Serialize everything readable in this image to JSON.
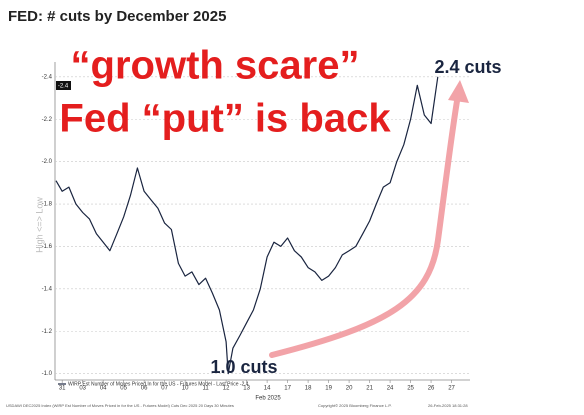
{
  "chart_data": {
    "type": "line",
    "title": "FED: # cuts by December 2025",
    "annotations": [
      "“growth scare”",
      "Fed “put” is back",
      "2.4 cuts",
      "1.0 cuts"
    ],
    "y_label": "High <=> Low",
    "x_label": "Feb 2025",
    "last_price_label": "-2.4",
    "legend_text": "WIRP Est Number of Moves Priced In for the US - Futures Model - Last Price -2.4",
    "footer": [
      "USDAWI DEC2025 Index (WIRP Est Number of Moves Priced in for the US - Futures Model) Cuts Dec 2025 20 Days 30 Minutes",
      "Copyright© 2025 Bloomberg Finance L.P.",
      "26-Feb-2025 18:31:28"
    ],
    "x": [
      -0.3,
      0,
      0.33,
      0.67,
      1,
      1.33,
      1.67,
      2,
      2.33,
      2.67,
      3,
      3.33,
      3.67,
      4,
      4.33,
      4.67,
      5,
      5.33,
      5.67,
      6,
      6.33,
      6.67,
      7,
      7.33,
      7.67,
      8,
      8.1,
      8.33,
      8.67,
      9,
      9.33,
      9.67,
      10,
      10.33,
      10.67,
      11,
      11.33,
      11.67,
      12,
      12.33,
      12.67,
      13,
      13.33,
      13.67,
      14,
      14.33,
      14.67,
      15,
      15.33,
      15.67,
      16,
      16.33,
      16.67,
      17,
      17.33,
      17.67,
      18,
      18.33
    ],
    "series": [
      {
        "color": "#1a2540",
        "values": [
          -1.91,
          -1.86,
          -1.88,
          -1.8,
          -1.76,
          -1.73,
          -1.66,
          -1.62,
          -1.58,
          -1.66,
          -1.74,
          -1.84,
          -1.97,
          -1.86,
          -1.82,
          -1.78,
          -1.71,
          -1.68,
          -1.52,
          -1.46,
          -1.48,
          -1.42,
          -1.45,
          -1.38,
          -1.3,
          -1.15,
          -1.0,
          -1.12,
          -1.18,
          -1.24,
          -1.3,
          -1.4,
          -1.55,
          -1.62,
          -1.6,
          -1.64,
          -1.58,
          -1.55,
          -1.5,
          -1.48,
          -1.44,
          -1.46,
          -1.5,
          -1.56,
          -1.58,
          -1.6,
          -1.66,
          -1.72,
          -1.8,
          -1.88,
          -1.9,
          -2.0,
          -2.08,
          -2.2,
          -2.36,
          -2.22,
          -2.18,
          -2.4
        ]
      }
    ],
    "xlim": [
      -0.35,
      19.9
    ],
    "xticks": [
      {
        "value": 0,
        "label": "31"
      },
      {
        "value": 1,
        "label": "03"
      },
      {
        "value": 2,
        "label": "04"
      },
      {
        "value": 3,
        "label": "05"
      },
      {
        "value": 4,
        "label": "06"
      },
      {
        "value": 5,
        "label": "07"
      },
      {
        "value": 6,
        "label": "10"
      },
      {
        "value": 7,
        "label": "11"
      },
      {
        "value": 8,
        "label": "12"
      },
      {
        "value": 9,
        "label": "13"
      },
      {
        "value": 10,
        "label": "14"
      },
      {
        "value": 11,
        "label": "17"
      },
      {
        "value": 12,
        "label": "18"
      },
      {
        "value": 13,
        "label": "19"
      },
      {
        "value": 14,
        "label": "20"
      },
      {
        "value": 15,
        "label": "21"
      },
      {
        "value": 16,
        "label": "24"
      },
      {
        "value": 17,
        "label": "25"
      },
      {
        "value": 18,
        "label": "26"
      },
      {
        "value": 19,
        "label": "27"
      }
    ],
    "ylim": [
      -0.97,
      -2.47
    ],
    "yticks": [
      -2.4,
      -2.2,
      {
        "value": -2.0,
        "label": "-2.0"
      },
      -1.8,
      -1.6,
      -1.4,
      -1.2,
      {
        "value": -1.0,
        "label": "-1.0"
      }
    ],
    "grid": true
  }
}
